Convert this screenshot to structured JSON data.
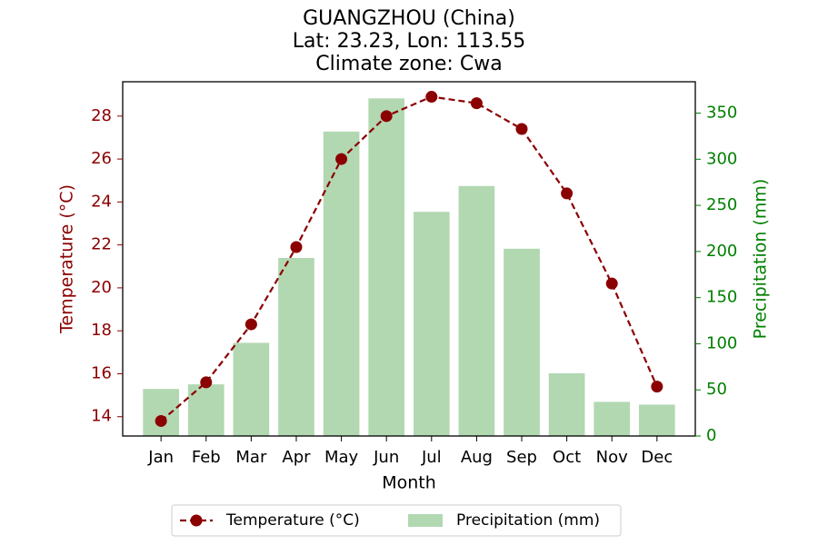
{
  "chart_data": {
    "type": "bar+line",
    "title_lines": [
      "GUANGZHOU (China)",
      "Lat: 23.23, Lon: 113.55",
      "Climate zone: Cwa"
    ],
    "categories": [
      "Jan",
      "Feb",
      "Mar",
      "Apr",
      "May",
      "Jun",
      "Jul",
      "Aug",
      "Sep",
      "Oct",
      "Nov",
      "Dec"
    ],
    "xlabel": "Month",
    "temperature": {
      "name": "Temperature (°C)",
      "values": [
        13.8,
        15.6,
        18.3,
        21.9,
        26.0,
        28.0,
        28.9,
        28.6,
        27.4,
        24.4,
        20.2,
        15.4
      ],
      "color": "#8b0000",
      "ylabel": "Temperature (°C)",
      "ylim": [
        13.1,
        29.6
      ],
      "ticks": [
        14,
        16,
        18,
        20,
        22,
        24,
        26,
        28
      ]
    },
    "precipitation": {
      "name": "Precipitation (mm)",
      "values": [
        51,
        56,
        101,
        193,
        330,
        366,
        243,
        271,
        203,
        68,
        37,
        34
      ],
      "color": "#b2d8b2",
      "label_color": "#008000",
      "ylabel": "Precipitation (mm)",
      "ylim": [
        0,
        384
      ],
      "ticks": [
        0,
        50,
        100,
        150,
        200,
        250,
        300,
        350
      ]
    },
    "legend_position": "bottom-center"
  }
}
